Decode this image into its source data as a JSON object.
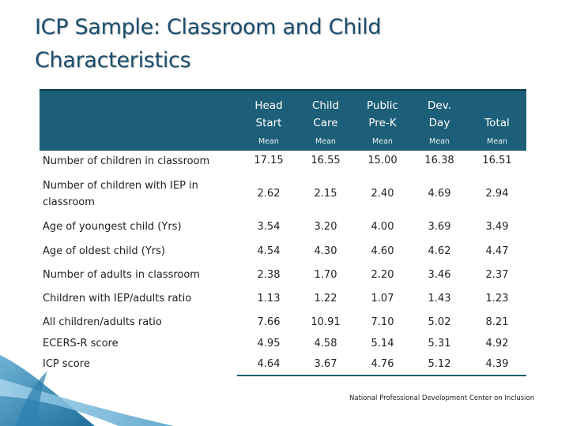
{
  "slide": {
    "title_line1": "ICP Sample: Classroom and Child",
    "title_line2": "Characteristics",
    "footer": "National Professional Development Center on Inclusion"
  },
  "columns": [
    {
      "line1": "Head",
      "line2": "Start",
      "sub": "Mean"
    },
    {
      "line1": "Child",
      "line2": "Care",
      "sub": "Mean"
    },
    {
      "line1": "Public",
      "line2": "Pre-K",
      "sub": "Mean"
    },
    {
      "line1": "Dev.",
      "line2": "Day",
      "sub": "Mean"
    },
    {
      "line1": "",
      "line2": "Total",
      "sub": "Mean"
    }
  ],
  "rows": [
    {
      "label": "Number of children in classroom",
      "values": [
        "17.15",
        "16.55",
        "15.00",
        "16.38",
        "16.51"
      ]
    },
    {
      "label": "Number of children with IEP in classroom",
      "values": [
        "2.62",
        "2.15",
        "2.40",
        "4.69",
        "2.94"
      ]
    },
    {
      "label": "Age of youngest child (Yrs)",
      "values": [
        "3.54",
        "3.20",
        "4.00",
        "3.69",
        "3.49"
      ]
    },
    {
      "label": "Age of oldest child (Yrs)",
      "values": [
        "4.54",
        "4.30",
        "4.60",
        "4.62",
        "4.47"
      ]
    },
    {
      "label": "Number of adults in classroom",
      "values": [
        "2.38",
        "1.70",
        "2.20",
        "3.46",
        "2.37"
      ]
    },
    {
      "label": "Children with IEP/adults ratio",
      "values": [
        "1.13",
        "1.22",
        "1.07",
        "1.43",
        "1.23"
      ]
    },
    {
      "label": "All children/adults ratio",
      "values": [
        "7.66",
        "10.91",
        "7.10",
        "5.02",
        "8.21"
      ]
    },
    {
      "label": "ECERS-R score",
      "values": [
        "4.95",
        "4.58",
        "5.14",
        "5.31",
        "4.92"
      ]
    },
    {
      "label": "ICP score",
      "values": [
        "4.64",
        "3.67",
        "4.76",
        "5.12",
        "4.39"
      ]
    }
  ]
}
